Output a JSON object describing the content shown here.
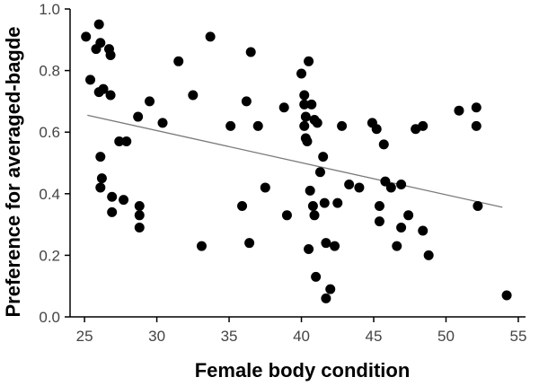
{
  "chart_data": {
    "type": "scatter",
    "title": "",
    "xlabel": "Female body condition",
    "ylabel": "Preference for averaged-bagde",
    "xlim": [
      24,
      55.5
    ],
    "ylim": [
      0,
      1.0
    ],
    "xticks": [
      25,
      30,
      35,
      40,
      45,
      50,
      55
    ],
    "yticks": [
      0.0,
      0.2,
      0.4,
      0.6,
      0.8,
      1.0
    ],
    "xtick_labels": [
      "25",
      "30",
      "35",
      "40",
      "45",
      "50",
      "55"
    ],
    "ytick_labels": [
      "0.0",
      "0.2",
      "0.4",
      "0.6",
      "0.8",
      "1.0"
    ],
    "grid": false,
    "legend": "none",
    "points": [
      {
        "x": 25.1,
        "y": 0.91
      },
      {
        "x": 25.4,
        "y": 0.77
      },
      {
        "x": 25.8,
        "y": 0.87
      },
      {
        "x": 26.0,
        "y": 0.95
      },
      {
        "x": 26.1,
        "y": 0.89
      },
      {
        "x": 26.0,
        "y": 0.73
      },
      {
        "x": 26.3,
        "y": 0.74
      },
      {
        "x": 26.7,
        "y": 0.87
      },
      {
        "x": 26.8,
        "y": 0.85
      },
      {
        "x": 26.8,
        "y": 0.72
      },
      {
        "x": 26.1,
        "y": 0.52
      },
      {
        "x": 26.2,
        "y": 0.45
      },
      {
        "x": 26.1,
        "y": 0.42
      },
      {
        "x": 26.9,
        "y": 0.39
      },
      {
        "x": 26.9,
        "y": 0.34
      },
      {
        "x": 27.4,
        "y": 0.57
      },
      {
        "x": 27.9,
        "y": 0.57
      },
      {
        "x": 27.7,
        "y": 0.38
      },
      {
        "x": 28.7,
        "y": 0.65
      },
      {
        "x": 28.8,
        "y": 0.36
      },
      {
        "x": 28.8,
        "y": 0.33
      },
      {
        "x": 28.8,
        "y": 0.29
      },
      {
        "x": 29.5,
        "y": 0.7
      },
      {
        "x": 30.4,
        "y": 0.63
      },
      {
        "x": 31.5,
        "y": 0.83
      },
      {
        "x": 32.5,
        "y": 0.72
      },
      {
        "x": 33.1,
        "y": 0.23
      },
      {
        "x": 33.7,
        "y": 0.91
      },
      {
        "x": 35.1,
        "y": 0.62
      },
      {
        "x": 35.9,
        "y": 0.36
      },
      {
        "x": 36.2,
        "y": 0.7
      },
      {
        "x": 36.5,
        "y": 0.86
      },
      {
        "x": 36.4,
        "y": 0.24
      },
      {
        "x": 37.0,
        "y": 0.62
      },
      {
        "x": 37.5,
        "y": 0.42
      },
      {
        "x": 38.8,
        "y": 0.68
      },
      {
        "x": 39.0,
        "y": 0.33
      },
      {
        "x": 40.0,
        "y": 0.79
      },
      {
        "x": 40.2,
        "y": 0.69
      },
      {
        "x": 40.2,
        "y": 0.72
      },
      {
        "x": 40.5,
        "y": 0.83
      },
      {
        "x": 40.3,
        "y": 0.65
      },
      {
        "x": 40.2,
        "y": 0.62
      },
      {
        "x": 40.3,
        "y": 0.58
      },
      {
        "x": 40.4,
        "y": 0.57
      },
      {
        "x": 40.5,
        "y": 0.22
      },
      {
        "x": 40.6,
        "y": 0.41
      },
      {
        "x": 40.7,
        "y": 0.69
      },
      {
        "x": 40.9,
        "y": 0.64
      },
      {
        "x": 40.8,
        "y": 0.36
      },
      {
        "x": 40.9,
        "y": 0.33
      },
      {
        "x": 41.1,
        "y": 0.63
      },
      {
        "x": 41.3,
        "y": 0.47
      },
      {
        "x": 41.5,
        "y": 0.52
      },
      {
        "x": 41.6,
        "y": 0.37
      },
      {
        "x": 41.7,
        "y": 0.24
      },
      {
        "x": 41.0,
        "y": 0.13
      },
      {
        "x": 41.7,
        "y": 0.06
      },
      {
        "x": 42.0,
        "y": 0.09
      },
      {
        "x": 42.3,
        "y": 0.23
      },
      {
        "x": 42.5,
        "y": 0.37
      },
      {
        "x": 42.8,
        "y": 0.62
      },
      {
        "x": 43.3,
        "y": 0.43
      },
      {
        "x": 44.0,
        "y": 0.42
      },
      {
        "x": 44.9,
        "y": 0.63
      },
      {
        "x": 45.2,
        "y": 0.61
      },
      {
        "x": 45.4,
        "y": 0.36
      },
      {
        "x": 45.4,
        "y": 0.31
      },
      {
        "x": 45.7,
        "y": 0.56
      },
      {
        "x": 45.8,
        "y": 0.44
      },
      {
        "x": 46.2,
        "y": 0.42
      },
      {
        "x": 46.6,
        "y": 0.23
      },
      {
        "x": 46.9,
        "y": 0.29
      },
      {
        "x": 46.9,
        "y": 0.43
      },
      {
        "x": 47.4,
        "y": 0.33
      },
      {
        "x": 47.9,
        "y": 0.61
      },
      {
        "x": 48.4,
        "y": 0.62
      },
      {
        "x": 48.4,
        "y": 0.28
      },
      {
        "x": 48.8,
        "y": 0.2
      },
      {
        "x": 50.9,
        "y": 0.67
      },
      {
        "x": 52.1,
        "y": 0.68
      },
      {
        "x": 52.1,
        "y": 0.62
      },
      {
        "x": 52.2,
        "y": 0.36
      },
      {
        "x": 54.2,
        "y": 0.07
      }
    ],
    "trendline": {
      "x": [
        25.2,
        53.9
      ],
      "y": [
        0.655,
        0.356
      ]
    }
  },
  "colors": {
    "points": "#000000",
    "trendline": "#7a7a7a",
    "axis": "#000000"
  }
}
